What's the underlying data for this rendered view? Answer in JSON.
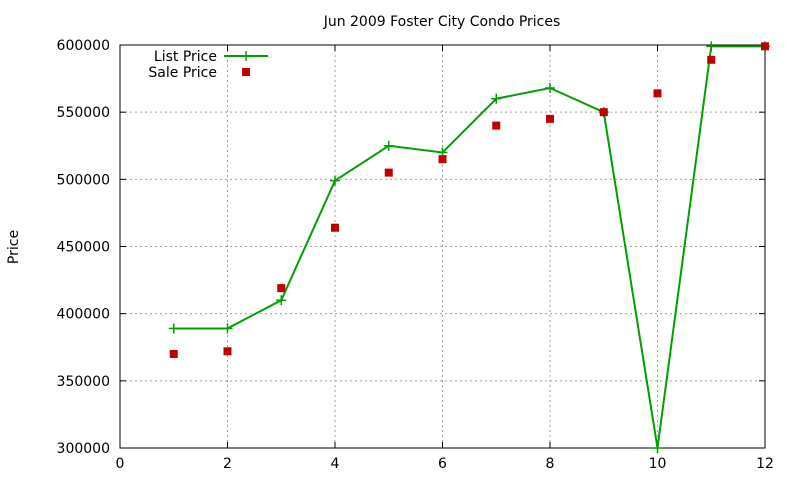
{
  "chart_data": {
    "type": "line",
    "title": "Jun 2009 Foster City Condo Prices",
    "xlabel": "",
    "ylabel": "Price",
    "xlim": [
      0,
      12
    ],
    "ylim": [
      300000,
      600000
    ],
    "xticks": [
      "0",
      "2",
      "4",
      "6",
      "8",
      "10",
      "12"
    ],
    "yticks": [
      "300000",
      "350000",
      "400000",
      "450000",
      "500000",
      "550000",
      "600000"
    ],
    "grid": true,
    "legend_position": "top-left",
    "series": [
      {
        "name": "List Price",
        "style": "line-with-plus-markers",
        "color": "#00a000",
        "x": [
          1,
          2,
          3,
          4,
          5,
          6,
          7,
          8,
          9,
          10,
          11,
          12
        ],
        "y": [
          389000,
          389000,
          410000,
          499000,
          525000,
          520000,
          560000,
          568000,
          550000,
          300000,
          599000,
          599000
        ]
      },
      {
        "name": "Sale Price",
        "style": "square-markers",
        "color": "#c00000",
        "x": [
          1,
          2,
          3,
          4,
          5,
          6,
          7,
          8,
          9,
          10,
          11,
          12
        ],
        "y": [
          370000,
          372000,
          419000,
          464000,
          505000,
          515000,
          540000,
          545000,
          550000,
          564000,
          589000,
          599000
        ]
      }
    ]
  }
}
